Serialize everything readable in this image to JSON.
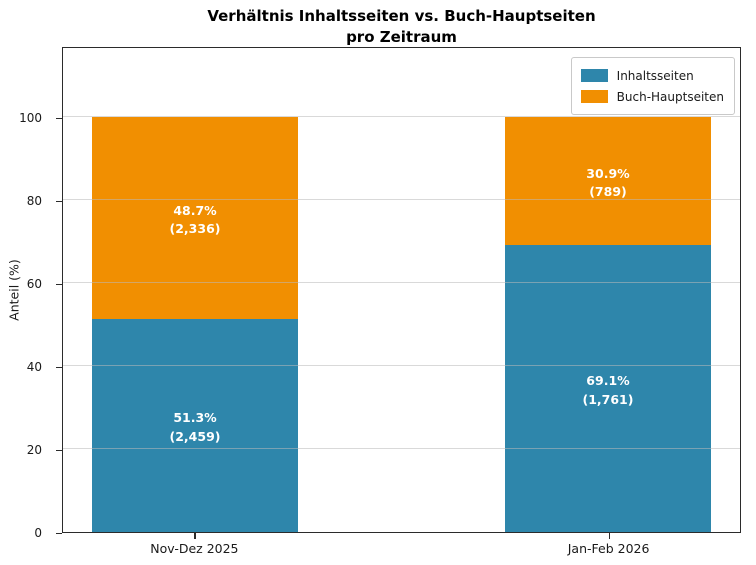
{
  "chart_data": {
    "type": "bar",
    "stacked": true,
    "title": "Verhältnis Inhaltsseiten vs. Buch-Hauptseiten\npro Zeitraum",
    "ylabel": "Anteil (%)",
    "xlabel": "",
    "categories": [
      "Nov-Dez 2025",
      "Jan-Feb 2026"
    ],
    "series": [
      {
        "name": "Inhaltsseiten",
        "color": "#2E86AB",
        "values": [
          51.3,
          69.1
        ],
        "counts": [
          2459,
          1761
        ],
        "bar_labels": [
          "51.3%\n(2,459)",
          "69.1%\n(1,761)"
        ]
      },
      {
        "name": "Buch-Hauptseiten",
        "color": "#F18F01",
        "values": [
          48.7,
          30.9
        ],
        "counts": [
          2336,
          789
        ],
        "bar_labels": [
          "48.7%\n(2,336)",
          "30.9%\n(789)"
        ]
      }
    ],
    "yticks": [
      0,
      20,
      40,
      60,
      80,
      100
    ],
    "ylim": [
      0,
      117
    ],
    "grid": true,
    "grid_over_bars": true,
    "legend_position": "upper right",
    "bar_label_color": "#ffffff",
    "layout": {
      "bar_centers_pct": [
        19.5,
        80.5
      ],
      "bar_width_pct": 30.5
    }
  }
}
